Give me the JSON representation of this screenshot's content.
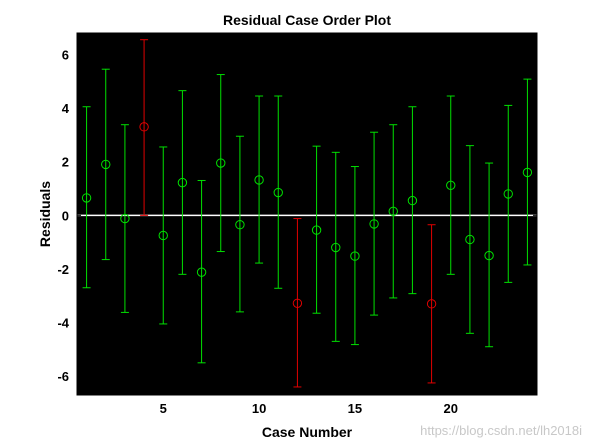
{
  "chart_data": {
    "type": "scatter",
    "title": "Residual Case Order Plot",
    "xlabel": "Case Number",
    "ylabel": "Residuals",
    "xlim": [
      0.5,
      24.5
    ],
    "ylim": [
      -6.7,
      6.8
    ],
    "xticks": [
      5,
      10,
      15,
      20
    ],
    "yticks": [
      -6,
      -4,
      -2,
      0,
      2,
      4,
      6
    ],
    "grid": false,
    "background": "#000000",
    "colors": {
      "normal": "#00e000",
      "outlier": "#e00000",
      "zero_line": "#ffffff"
    },
    "points": [
      {
        "case": 1,
        "residual": 0.65,
        "lower": -2.7,
        "upper": 4.05,
        "outlier": false
      },
      {
        "case": 2,
        "residual": 1.9,
        "lower": -1.65,
        "upper": 5.45,
        "outlier": false
      },
      {
        "case": 3,
        "residual": -0.12,
        "lower": -3.62,
        "upper": 3.38,
        "outlier": false
      },
      {
        "case": 4,
        "residual": 3.3,
        "lower": 0.0,
        "upper": 6.55,
        "outlier": true
      },
      {
        "case": 5,
        "residual": -0.75,
        "lower": -4.05,
        "upper": 2.55,
        "outlier": false
      },
      {
        "case": 6,
        "residual": 1.22,
        "lower": -2.2,
        "upper": 4.65,
        "outlier": false
      },
      {
        "case": 7,
        "residual": -2.12,
        "lower": -5.5,
        "upper": 1.3,
        "outlier": false
      },
      {
        "case": 8,
        "residual": 1.95,
        "lower": -1.35,
        "upper": 5.25,
        "outlier": false
      },
      {
        "case": 9,
        "residual": -0.35,
        "lower": -3.6,
        "upper": 2.95,
        "outlier": false
      },
      {
        "case": 10,
        "residual": 1.32,
        "lower": -1.78,
        "upper": 4.45,
        "outlier": false
      },
      {
        "case": 11,
        "residual": 0.85,
        "lower": -2.72,
        "upper": 4.45,
        "outlier": false
      },
      {
        "case": 12,
        "residual": -3.28,
        "lower": -6.4,
        "upper": -0.12,
        "outlier": true
      },
      {
        "case": 13,
        "residual": -0.55,
        "lower": -3.65,
        "upper": 2.58,
        "outlier": false
      },
      {
        "case": 14,
        "residual": -1.2,
        "lower": -4.7,
        "upper": 2.35,
        "outlier": false
      },
      {
        "case": 15,
        "residual": -1.52,
        "lower": -4.82,
        "upper": 1.82,
        "outlier": false
      },
      {
        "case": 16,
        "residual": -0.32,
        "lower": -3.72,
        "upper": 3.1,
        "outlier": false
      },
      {
        "case": 17,
        "residual": 0.15,
        "lower": -3.08,
        "upper": 3.38,
        "outlier": false
      },
      {
        "case": 18,
        "residual": 0.55,
        "lower": -2.92,
        "upper": 4.05,
        "outlier": false
      },
      {
        "case": 19,
        "residual": -3.3,
        "lower": -6.25,
        "upper": -0.35,
        "outlier": true
      },
      {
        "case": 20,
        "residual": 1.12,
        "lower": -2.2,
        "upper": 4.45,
        "outlier": false
      },
      {
        "case": 21,
        "residual": -0.9,
        "lower": -4.4,
        "upper": 2.6,
        "outlier": false
      },
      {
        "case": 22,
        "residual": -1.5,
        "lower": -4.9,
        "upper": 1.95,
        "outlier": false
      },
      {
        "case": 23,
        "residual": 0.8,
        "lower": -2.5,
        "upper": 4.1,
        "outlier": false
      },
      {
        "case": 24,
        "residual": 1.6,
        "lower": -1.85,
        "upper": 5.08,
        "outlier": false
      }
    ]
  },
  "watermark": "https://blog.csdn.net/lh2018i"
}
